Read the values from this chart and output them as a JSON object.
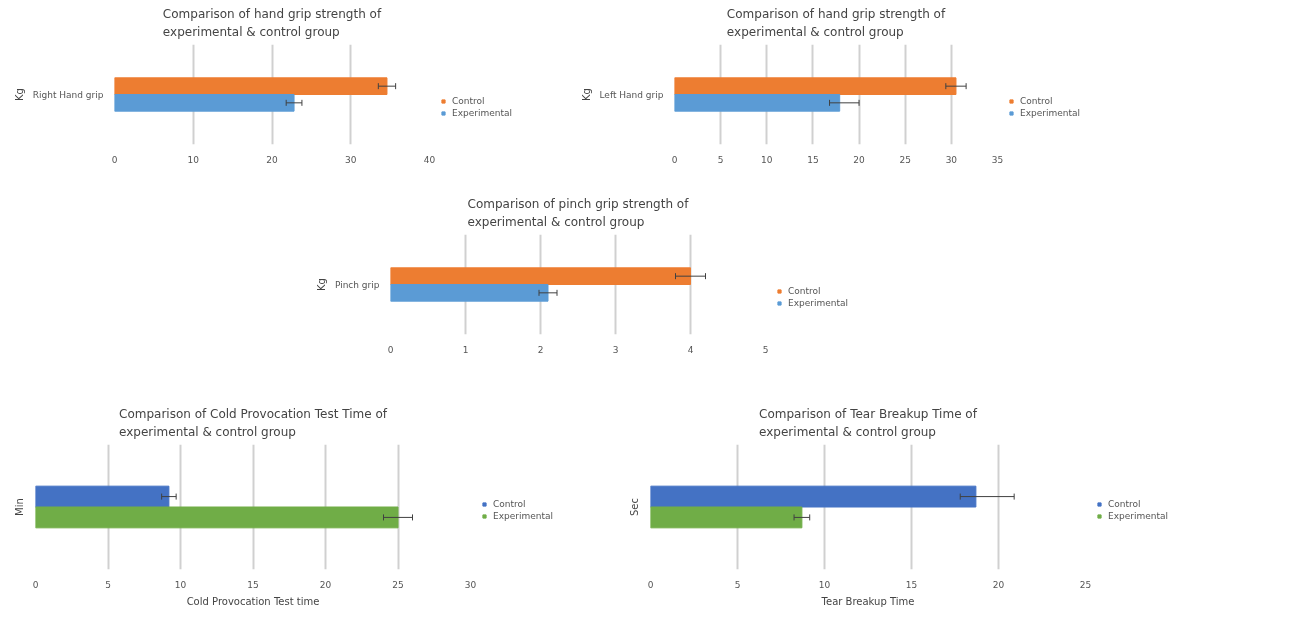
{
  "chart_data": [
    {
      "type": "bar",
      "orientation": "horizontal",
      "title": "Comparison of hand grip strength of experimental & control group",
      "ylabel": "Kg",
      "categories": [
        "Right Hand grip"
      ],
      "xlim": [
        0,
        40
      ],
      "xticks": [
        0,
        10,
        20,
        30,
        40
      ],
      "grid": "x",
      "legend": "right",
      "series": [
        {
          "name": "Control",
          "color": "#ed7d31",
          "values": [
            34.6
          ],
          "errors": [
            1.1
          ]
        },
        {
          "name": "Experimental",
          "color": "#5b9bd5",
          "values": [
            22.8
          ],
          "errors": [
            1.0
          ]
        }
      ]
    },
    {
      "type": "bar",
      "orientation": "horizontal",
      "title": "Comparison of hand grip strength of experimental & control group",
      "ylabel": "Kg",
      "categories": [
        "Left Hand grip"
      ],
      "xlim": [
        0,
        35
      ],
      "xticks": [
        0,
        5,
        10,
        15,
        20,
        25,
        30,
        35
      ],
      "grid": "x",
      "legend": "right",
      "series": [
        {
          "name": "Control",
          "color": "#ed7d31",
          "values": [
            30.5
          ],
          "errors": [
            1.1
          ]
        },
        {
          "name": "Experimental",
          "color": "#5b9bd5",
          "values": [
            17.9
          ],
          "errors": [
            [
              16.8,
              20.0
            ]
          ]
        }
      ]
    },
    {
      "type": "bar",
      "orientation": "horizontal",
      "title": "Comparison of pinch grip strength of experimental & control group",
      "ylabel": "Kg",
      "categories": [
        "Pinch grip"
      ],
      "xlim": [
        0,
        5
      ],
      "xticks": [
        0,
        1,
        2,
        3,
        4,
        5
      ],
      "grid": "x",
      "legend": "right",
      "series": [
        {
          "name": "Control",
          "color": "#ed7d31",
          "values": [
            4.0
          ],
          "errors": [
            0.2
          ]
        },
        {
          "name": "Experimental",
          "color": "#5b9bd5",
          "values": [
            2.1
          ],
          "errors": [
            0.12
          ]
        }
      ]
    },
    {
      "type": "bar",
      "orientation": "horizontal",
      "title": "Comparison of Cold Provocation Test Time of experimental & control group",
      "ylabel": "Min",
      "xlabel": "Cold Provocation Test time",
      "categories": [
        null
      ],
      "xlim": [
        0,
        30
      ],
      "xticks": [
        0,
        5,
        10,
        15,
        20,
        25,
        30
      ],
      "grid": "x",
      "legend": "right",
      "series": [
        {
          "name": "Control",
          "color": "#4472c4",
          "values": [
            9.2
          ],
          "errors": [
            0.5
          ]
        },
        {
          "name": "Experimental",
          "color": "#70ad47",
          "values": [
            25.0
          ],
          "errors": [
            1.0
          ]
        }
      ]
    },
    {
      "type": "bar",
      "orientation": "horizontal",
      "title": "Comparison of Tear Breakup Time of experimental & control group",
      "ylabel": "Sec",
      "xlabel": "Tear Breakup Time",
      "categories": [
        null
      ],
      "xlim": [
        0,
        25
      ],
      "xticks": [
        0,
        5,
        10,
        15,
        20,
        25
      ],
      "grid": "x",
      "legend": "right",
      "series": [
        {
          "name": "Control",
          "color": "#4472c4",
          "values": [
            18.7
          ],
          "errors": [
            [
              17.8,
              20.9
            ]
          ]
        },
        {
          "name": "Experimental",
          "color": "#70ad47",
          "values": [
            8.7
          ],
          "errors": [
            0.45
          ]
        }
      ]
    }
  ]
}
